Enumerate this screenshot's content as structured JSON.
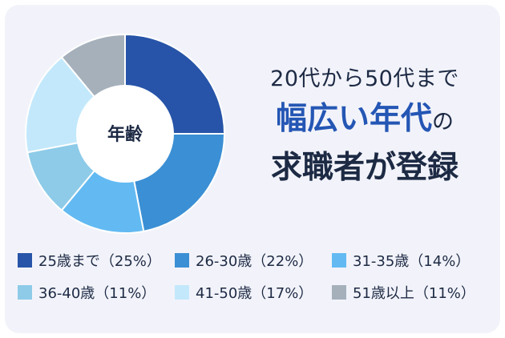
{
  "headline": {
    "line1": "20代から50代まで",
    "line2_accent": "幅広い年代",
    "line2_suffix": "の",
    "line3": "求職者が登録"
  },
  "chart_data": {
    "type": "pie",
    "center_label": "年齢",
    "slices": [
      {
        "label": "25歳まで（25%）",
        "value": 25,
        "color": "#2754a8"
      },
      {
        "label": "26-30歳（22%）",
        "value": 22,
        "color": "#3b8fd4"
      },
      {
        "label": "31-35歳（14%）",
        "value": 14,
        "color": "#63baf2"
      },
      {
        "label": "36-40歳（11%）",
        "value": 11,
        "color": "#8dcbe8"
      },
      {
        "label": "41-50歳（17%）",
        "value": 17,
        "color": "#c3e8fb"
      },
      {
        "label": "51歳以上（11%）",
        "value": 11,
        "color": "#a5b0bb"
      }
    ]
  }
}
